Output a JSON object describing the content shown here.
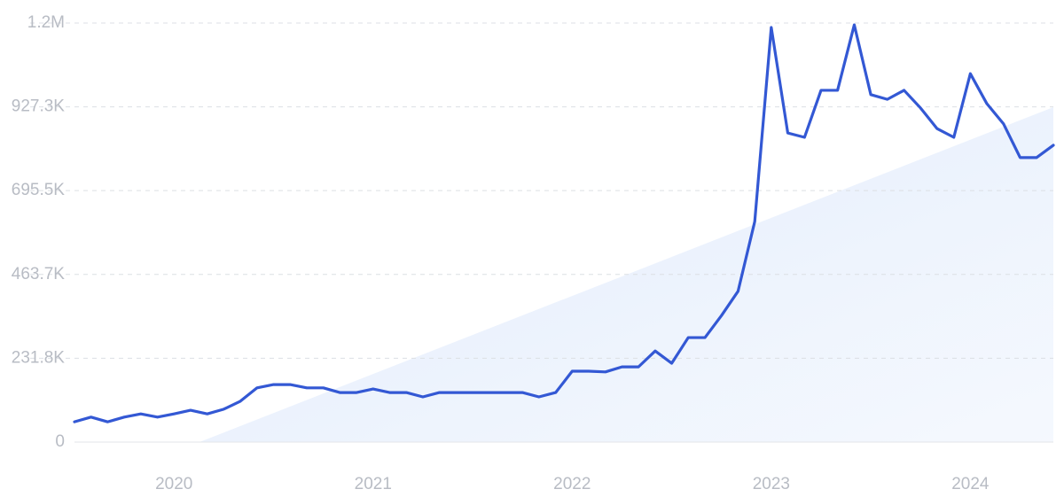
{
  "chart_data": {
    "type": "line",
    "x": [
      2019.5,
      2019.583,
      2019.667,
      2019.75,
      2019.833,
      2019.917,
      2020,
      2020.083,
      2020.167,
      2020.25,
      2020.333,
      2020.417,
      2020.5,
      2020.583,
      2020.667,
      2020.75,
      2020.833,
      2020.917,
      2021,
      2021.083,
      2021.167,
      2021.25,
      2021.333,
      2021.417,
      2021.5,
      2021.583,
      2021.667,
      2021.75,
      2021.833,
      2021.917,
      2022,
      2022.083,
      2022.167,
      2022.25,
      2022.333,
      2022.417,
      2022.5,
      2022.583,
      2022.667,
      2022.75,
      2022.833,
      2022.917,
      2023,
      2023.083,
      2023.167,
      2023.25,
      2023.333,
      2023.417,
      2023.5,
      2023.583,
      2023.667,
      2023.75,
      2023.833,
      2023.917,
      2024,
      2024.083,
      2024.167,
      2024.25,
      2024.333,
      2024.417
    ],
    "series": [
      {
        "color": "#3358d4",
        "values": [
          56000,
          69000,
          56000,
          69000,
          78000,
          69000,
          78000,
          88000,
          78000,
          91000,
          113000,
          150000,
          159000,
          159000,
          150000,
          150000,
          137000,
          137000,
          147000,
          137000,
          137000,
          125000,
          137000,
          137000,
          137000,
          137000,
          137000,
          137000,
          125000,
          137000,
          196000,
          196000,
          194000,
          208000,
          208000,
          252000,
          218000,
          289000,
          289000,
          350000,
          417000,
          610000,
          1147000,
          855000,
          843000,
          973000,
          973000,
          1154000,
          961000,
          948000,
          973000,
          924000,
          867000,
          843000,
          1019000,
          936000,
          880000,
          787000,
          787000,
          821000
        ]
      }
    ],
    "xlim": [
      2019.5,
      2024.417
    ],
    "xticks": [
      2020,
      2021,
      2022,
      2023,
      2024
    ],
    "ylim": [
      0,
      1159100
    ],
    "yticks": [
      0,
      {
        "value": 231800,
        "label": "231.8K"
      },
      {
        "value": 463700,
        "label": "463.7K"
      },
      {
        "value": 695500,
        "label": "695.5K"
      },
      {
        "value": 927300,
        "label": "927.3K"
      },
      {
        "value": 1159100,
        "label": "1.2M"
      }
    ],
    "grid": true
  }
}
